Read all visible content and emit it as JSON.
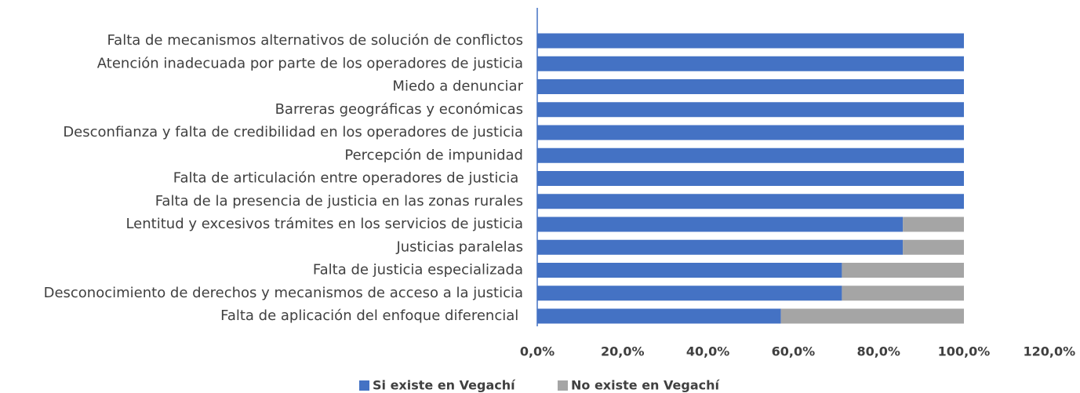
{
  "chart_data": {
    "type": "stacked-barh",
    "categories": [
      "Falta de mecanismos alternativos de solución de conflictos",
      "Atención inadecuada por parte de los operadores de justicia",
      "Miedo a denunciar",
      "Barreras geográficas y económicas",
      "Desconfianza y falta de credibilidad en los operadores de justicia",
      "Percepción de impunidad",
      "Falta de articulación entre operadores de justicia ",
      "Falta de la presencia de justicia en las zonas rurales",
      "Lentitud y excesivos trámites en los servicios de justicia",
      "Justicias paralelas",
      "Falta de justicia especializada",
      "Desconocimiento de derechos y mecanismos de acceso a la justicia",
      "Falta de aplicación del enfoque diferencial "
    ],
    "series": [
      {
        "name": "Si existe en Vegachí",
        "color": "#4472c4",
        "values": [
          100,
          100,
          100,
          100,
          100,
          100,
          100,
          100,
          85.7,
          85.7,
          71.4,
          71.4,
          57.1
        ]
      },
      {
        "name": "No existe en Vegachí",
        "color": "#a5a5a5",
        "values": [
          0,
          0,
          0,
          0,
          0,
          0,
          0,
          0,
          14.3,
          14.3,
          28.6,
          28.6,
          42.9
        ]
      }
    ],
    "xlim": [
      0,
      120
    ],
    "xticks": [
      {
        "value": 0,
        "label": "0,0%"
      },
      {
        "value": 20,
        "label": "20,0%"
      },
      {
        "value": 40,
        "label": "40,0%"
      },
      {
        "value": 60,
        "label": "60,0%"
      },
      {
        "value": 80,
        "label": "80,0%"
      },
      {
        "value": 100,
        "label": "100,0%"
      },
      {
        "value": 120,
        "label": "120,0%"
      }
    ],
    "legend": "bottom"
  }
}
